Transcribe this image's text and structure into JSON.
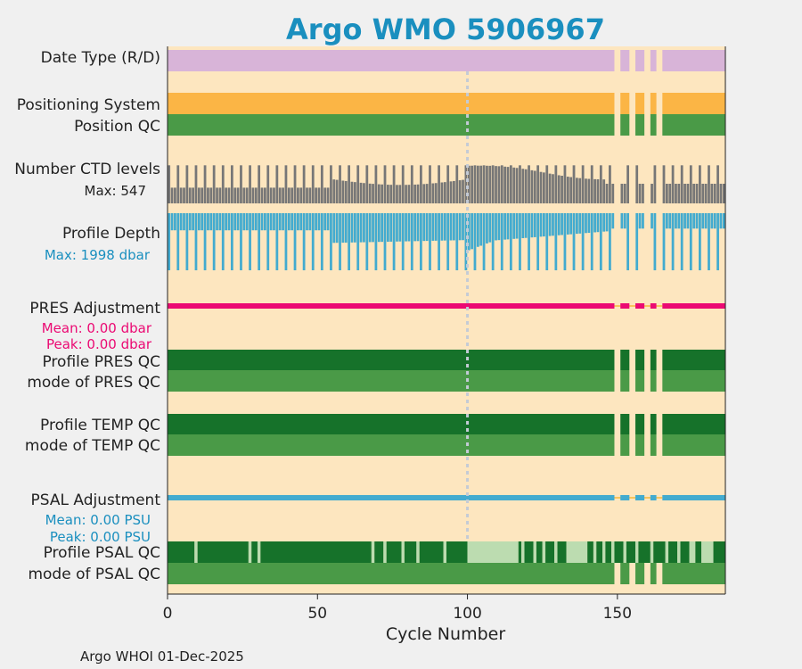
{
  "title": "Argo WMO 5906967",
  "footer": "Argo WHOI 01-Dec-2025",
  "colors": {
    "title": "#1a8fbf",
    "background": "#fde6bf",
    "figure_bg": "#f0f0f0",
    "date_type": "#d8b4d8",
    "positioning": "#fbb545",
    "qc_light_green": "#4a9a47",
    "qc_dark_green": "#16722a",
    "qc_pale_green": "#bcdcb0",
    "ctd": "#777777",
    "depth": "#43abcf",
    "pres_adj": "#eb0a73",
    "psal_adj": "#43abcf",
    "gap_line": "#f6b93b",
    "ref_line": "#c4cbd6"
  },
  "rows": {
    "date_type": "Date Type (R/D)",
    "positioning": "Positioning System",
    "position_qc": "Position QC",
    "ctd_levels": "Number CTD levels",
    "ctd_max": "Max: 547",
    "profile_depth": "Profile Depth",
    "depth_max": "Max: 1998 dbar",
    "pres_adj": "PRES Adjustment",
    "pres_mean": "Mean: 0.00 dbar",
    "pres_peak": "Peak: 0.00 dbar",
    "profile_pres_qc": "Profile PRES QC",
    "mode_pres_qc": "mode of PRES QC",
    "profile_temp_qc": "Profile TEMP QC",
    "mode_temp_qc": "mode of TEMP QC",
    "psal_adj": "PSAL Adjustment",
    "psal_mean": "Mean: 0.00 PSU",
    "psal_peak": "Peak: 0.00 PSU",
    "profile_psal_qc": "Profile PSAL QC",
    "mode_psal_qc": "mode of PSAL QC"
  },
  "chart_data": {
    "type": "timeline",
    "title": "Argo WMO 5906967",
    "xlabel": "Cycle Number",
    "xlim": [
      0,
      186
    ],
    "xticks": [
      0,
      50,
      100,
      150
    ],
    "reference_cycle": 100,
    "ctd_levels_max": 547,
    "profile_depth_max_dbar": 1998,
    "pres_adjustment": {
      "mean_dbar": 0.0,
      "peak_dbar": 0.0
    },
    "psal_adjustment": {
      "mean_psu": 0.0,
      "peak_psu": 0.0
    },
    "missing_cycles": [
      149,
      150,
      154,
      155,
      159,
      160,
      163,
      164
    ],
    "psal_qc_segments": [
      {
        "from": 0,
        "to": 9,
        "qc": "dark"
      },
      {
        "from": 9,
        "to": 10,
        "qc": "pale"
      },
      {
        "from": 10,
        "to": 27,
        "qc": "dark"
      },
      {
        "from": 27,
        "to": 28,
        "qc": "pale"
      },
      {
        "from": 28,
        "to": 30,
        "qc": "dark"
      },
      {
        "from": 30,
        "to": 31,
        "qc": "pale"
      },
      {
        "from": 31,
        "to": 68,
        "qc": "dark"
      },
      {
        "from": 68,
        "to": 69,
        "qc": "pale"
      },
      {
        "from": 69,
        "to": 72,
        "qc": "dark"
      },
      {
        "from": 72,
        "to": 73,
        "qc": "pale"
      },
      {
        "from": 73,
        "to": 78,
        "qc": "dark"
      },
      {
        "from": 78,
        "to": 79,
        "qc": "pale"
      },
      {
        "from": 79,
        "to": 83,
        "qc": "dark"
      },
      {
        "from": 83,
        "to": 84,
        "qc": "pale"
      },
      {
        "from": 84,
        "to": 92,
        "qc": "dark"
      },
      {
        "from": 92,
        "to": 93,
        "qc": "pale"
      },
      {
        "from": 93,
        "to": 100,
        "qc": "dark"
      },
      {
        "from": 100,
        "to": 117,
        "qc": "pale"
      },
      {
        "from": 117,
        "to": 118,
        "qc": "dark"
      },
      {
        "from": 118,
        "to": 119,
        "qc": "pale"
      },
      {
        "from": 119,
        "to": 122,
        "qc": "dark"
      },
      {
        "from": 122,
        "to": 123,
        "qc": "pale"
      },
      {
        "from": 123,
        "to": 125,
        "qc": "dark"
      },
      {
        "from": 125,
        "to": 126,
        "qc": "pale"
      },
      {
        "from": 126,
        "to": 129,
        "qc": "dark"
      },
      {
        "from": 129,
        "to": 130,
        "qc": "pale"
      },
      {
        "from": 130,
        "to": 133,
        "qc": "dark"
      },
      {
        "from": 133,
        "to": 140,
        "qc": "pale"
      },
      {
        "from": 140,
        "to": 142,
        "qc": "dark"
      },
      {
        "from": 142,
        "to": 143,
        "qc": "pale"
      },
      {
        "from": 143,
        "to": 145,
        "qc": "dark"
      },
      {
        "from": 145,
        "to": 146,
        "qc": "pale"
      },
      {
        "from": 146,
        "to": 148,
        "qc": "dark"
      },
      {
        "from": 148,
        "to": 149,
        "qc": "pale"
      },
      {
        "from": 149,
        "to": 152,
        "qc": "dark"
      },
      {
        "from": 152,
        "to": 153,
        "qc": "pale"
      },
      {
        "from": 153,
        "to": 156,
        "qc": "dark"
      },
      {
        "from": 156,
        "to": 157,
        "qc": "pale"
      },
      {
        "from": 157,
        "to": 161,
        "qc": "dark"
      },
      {
        "from": 161,
        "to": 162,
        "qc": "pale"
      },
      {
        "from": 162,
        "to": 166,
        "qc": "dark"
      },
      {
        "from": 166,
        "to": 167,
        "qc": "pale"
      },
      {
        "from": 167,
        "to": 170,
        "qc": "dark"
      },
      {
        "from": 170,
        "to": 171,
        "qc": "pale"
      },
      {
        "from": 171,
        "to": 174,
        "qc": "dark"
      },
      {
        "from": 174,
        "to": 176,
        "qc": "pale"
      },
      {
        "from": 176,
        "to": 178,
        "qc": "dark"
      },
      {
        "from": 178,
        "to": 182,
        "qc": "pale"
      },
      {
        "from": 182,
        "to": 186,
        "qc": "dark"
      }
    ]
  }
}
